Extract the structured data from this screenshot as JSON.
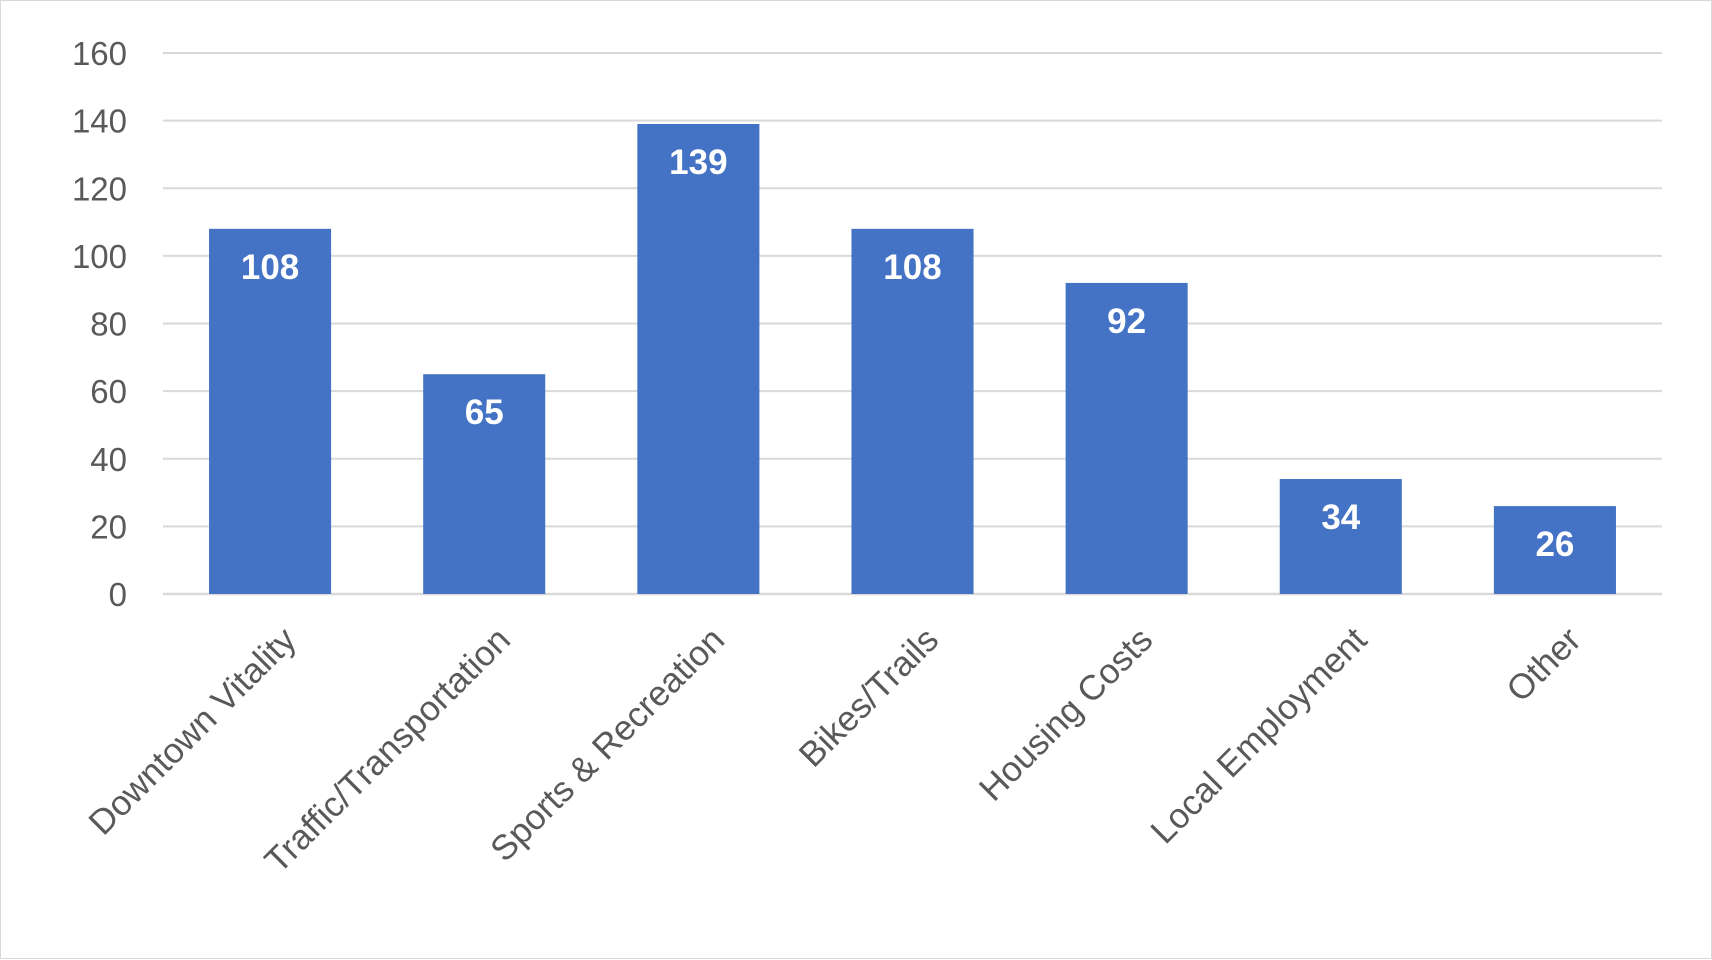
{
  "chart_data": {
    "type": "bar",
    "title": "",
    "xlabel": "",
    "ylabel": "",
    "categories": [
      "Downtown Vitality",
      "Traffic/Transportation",
      "Sports & Recreation",
      "Bikes/Trails",
      "Housing Costs",
      "Local Employment",
      "Other"
    ],
    "values": [
      108,
      65,
      139,
      108,
      92,
      34,
      26
    ],
    "data_labels": [
      "108",
      "65",
      "139",
      "108",
      "92",
      "34",
      "26"
    ],
    "ylim": [
      0,
      160
    ],
    "yticks": [
      0,
      20,
      40,
      60,
      80,
      100,
      120,
      140,
      160
    ],
    "ytick_labels": [
      "0",
      "20",
      "40",
      "60",
      "80",
      "100",
      "120",
      "140",
      "160"
    ],
    "grid": true,
    "legend": "none",
    "bar_color": "#4472c4",
    "label_color": "#ffffff"
  }
}
